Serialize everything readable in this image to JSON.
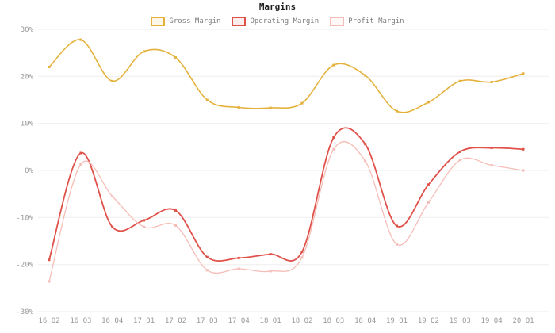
{
  "chart_data": {
    "type": "line",
    "title": "Margins",
    "categories": [
      "16 Q2",
      "16 Q3",
      "16 Q4",
      "17 Q1",
      "17 Q2",
      "17 Q3",
      "17 Q4",
      "18 Q1",
      "18 Q2",
      "18 Q3",
      "18 Q4",
      "19 Q1",
      "19 Q2",
      "19 Q3",
      "19 Q4",
      "20 Q1"
    ],
    "series": [
      {
        "name": "Gross Margin",
        "color": "#e4b23c",
        "line_width": 1.6,
        "values": [
          22,
          27.8,
          19,
          25.3,
          24,
          15,
          13.4,
          13.3,
          14.3,
          22.4,
          20.2,
          12.6,
          14.5,
          19,
          18.8,
          20.6
        ]
      },
      {
        "name": "Operating Margin",
        "color": "#e0514a",
        "line_width": 1.8,
        "values": [
          -19,
          3.7,
          -12,
          -10.6,
          -8.5,
          -18.4,
          -18.6,
          -17.8,
          -17.3,
          7,
          5.6,
          -11.8,
          -3,
          4,
          4.8,
          4.5
        ]
      },
      {
        "name": "Profit Margin",
        "color": "#f5bdb8",
        "line_width": 1.3,
        "values": [
          -23.6,
          1.3,
          -5.5,
          -12,
          -11.7,
          -21.2,
          -20.9,
          -21.4,
          -18.5,
          4.5,
          2,
          -15.7,
          -6.8,
          2.2,
          1.1,
          0
        ]
      }
    ],
    "ylim": [
      -30,
      30
    ],
    "y_tick_step": 10,
    "y_tick_labels": [
      "30%",
      "20%",
      "10%",
      "0%",
      "-10%",
      "-20%",
      "-30%"
    ],
    "grid": true,
    "legend_position": "top",
    "colors": {
      "grid_line": "#ededed",
      "axis_text": "#999999",
      "title_text": "#222222",
      "background": "#ffffff"
    }
  }
}
